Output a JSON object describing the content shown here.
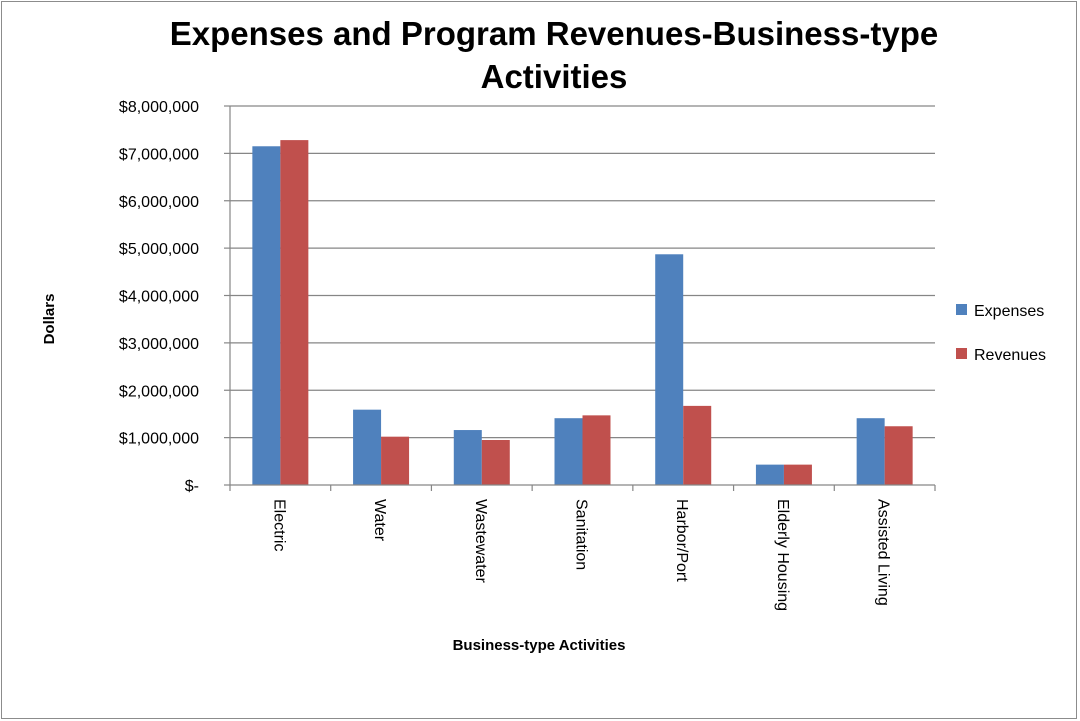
{
  "chart_data": {
    "type": "bar",
    "title_lines": [
      "Expenses and Program Revenues-Business-type",
      "Activities"
    ],
    "xlabel": "Business-type Activities",
    "ylabel": "Dollars",
    "ylim": [
      0,
      8000000
    ],
    "yticks": [
      0,
      1000000,
      2000000,
      3000000,
      4000000,
      5000000,
      6000000,
      7000000,
      8000000
    ],
    "ytick_labels": [
      "$-",
      "$1,000,000",
      "$2,000,000",
      "$3,000,000",
      "$4,000,000",
      "$5,000,000",
      "$6,000,000",
      "$7,000,000",
      "$8,000,000"
    ],
    "categories": [
      "Electric",
      "Water",
      "Wastewater",
      "Sanitation",
      "Harbor/Port",
      "Elderly Housing",
      "Assisted Living"
    ],
    "series": [
      {
        "name": "Expenses",
        "color": "#4f81bd",
        "values": [
          7150000,
          1590000,
          1160000,
          1410000,
          4870000,
          430000,
          1410000
        ]
      },
      {
        "name": "Revenues",
        "color": "#c0504d",
        "values": [
          7280000,
          1020000,
          950000,
          1470000,
          1670000,
          430000,
          1240000
        ]
      }
    ],
    "grid": true,
    "legend_position": "right"
  }
}
